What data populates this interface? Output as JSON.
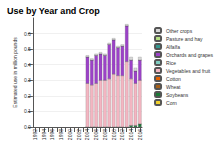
{
  "chart_data": {
    "type": "bar",
    "title": "Use by Year and Crop",
    "y_label": "Estimated use in million pounds",
    "categories": [
      "1992",
      null,
      "1994",
      null,
      "1996",
      null,
      "1998",
      null,
      "2000",
      null,
      "2002",
      null,
      "2004",
      null,
      "2006",
      null,
      "2008",
      null,
      "2010",
      null,
      "2012",
      null,
      "2014",
      null,
      "2016"
    ],
    "stacked": true,
    "grid": true,
    "legend": "right",
    "ylim": [
      0,
      0.7
    ],
    "yticks": [
      {
        "value": 0,
        "label": "0.0"
      },
      {
        "value": 0.1,
        "label": "0.1"
      },
      {
        "value": 0.2,
        "label": "0.2"
      },
      {
        "value": 0.3,
        "label": "0.3"
      },
      {
        "value": 0.4,
        "label": "0.4"
      },
      {
        "value": 0.5,
        "label": "0.5"
      },
      {
        "value": 0.6,
        "label": "0.6"
      }
    ],
    "series": [
      {
        "name": "Corn",
        "color": "#f2d22e",
        "values": [
          null,
          null,
          null,
          null,
          null,
          null,
          null,
          null,
          null,
          null,
          null,
          null,
          0,
          0,
          0,
          0,
          0,
          0,
          0,
          0,
          0,
          0,
          0,
          0,
          0
        ]
      },
      {
        "name": "Soybeans",
        "color": "#1b7837",
        "values": [
          null,
          null,
          null,
          null,
          null,
          null,
          null,
          null,
          null,
          null,
          null,
          null,
          0,
          0,
          0,
          0,
          0,
          0,
          0,
          0,
          0,
          0,
          0.01,
          0.01,
          0.02
        ]
      },
      {
        "name": "Wheat",
        "color": "#a6611a",
        "values": [
          null,
          null,
          null,
          null,
          null,
          null,
          null,
          null,
          null,
          null,
          null,
          null,
          0,
          0,
          0,
          0,
          0,
          0,
          0,
          0,
          0,
          0,
          0,
          0,
          0
        ]
      },
      {
        "name": "Cotton",
        "color": "#e66101",
        "values": [
          null,
          null,
          null,
          null,
          null,
          null,
          null,
          null,
          null,
          null,
          null,
          null,
          0,
          0,
          0,
          0,
          0,
          0,
          0,
          0,
          0,
          0,
          0,
          0,
          0
        ]
      },
      {
        "name": "Vegetables and fruit",
        "color": "#f4b6c2",
        "values": [
          null,
          null,
          null,
          null,
          null,
          null,
          null,
          null,
          null,
          null,
          null,
          null,
          0.28,
          0.27,
          0.28,
          0.3,
          0.3,
          0.31,
          0.34,
          0.33,
          0.33,
          0.42,
          0.3,
          0.27,
          0.28
        ]
      },
      {
        "name": "Rice",
        "color": "#80cdc1",
        "values": [
          null,
          null,
          null,
          null,
          null,
          null,
          null,
          null,
          null,
          null,
          null,
          null,
          0,
          0,
          0,
          0,
          0,
          0,
          0,
          0,
          0,
          0,
          0,
          0,
          0
        ]
      },
      {
        "name": "Orchards and grapes",
        "color": "#9c42c8",
        "values": [
          null,
          null,
          null,
          null,
          null,
          null,
          null,
          null,
          null,
          null,
          null,
          null,
          0.17,
          0.16,
          0.18,
          0.17,
          0.16,
          0.22,
          0.22,
          0.18,
          0.19,
          0.23,
          0.12,
          0.08,
          0.13
        ]
      },
      {
        "name": "Alfalfa",
        "color": "#35978f",
        "values": [
          null,
          null,
          null,
          null,
          null,
          null,
          null,
          null,
          null,
          null,
          null,
          null,
          0,
          0,
          0,
          0,
          0,
          0,
          0,
          0,
          0,
          0,
          0,
          0,
          0
        ]
      },
      {
        "name": "Pasture and hay",
        "color": "#b8e186",
        "values": [
          null,
          null,
          null,
          null,
          null,
          null,
          null,
          null,
          null,
          null,
          null,
          null,
          0,
          0,
          0,
          0,
          0,
          0,
          0,
          0,
          0,
          0,
          0,
          0,
          0
        ]
      },
      {
        "name": "Other crops",
        "color": "#d9d9d9",
        "values": [
          null,
          null,
          null,
          null,
          null,
          null,
          null,
          null,
          null,
          null,
          null,
          null,
          0.01,
          0.01,
          0.01,
          0.01,
          0.01,
          0.01,
          0.01,
          0.01,
          0.01,
          0.01,
          0.02,
          0.02,
          0.02
        ]
      }
    ]
  }
}
